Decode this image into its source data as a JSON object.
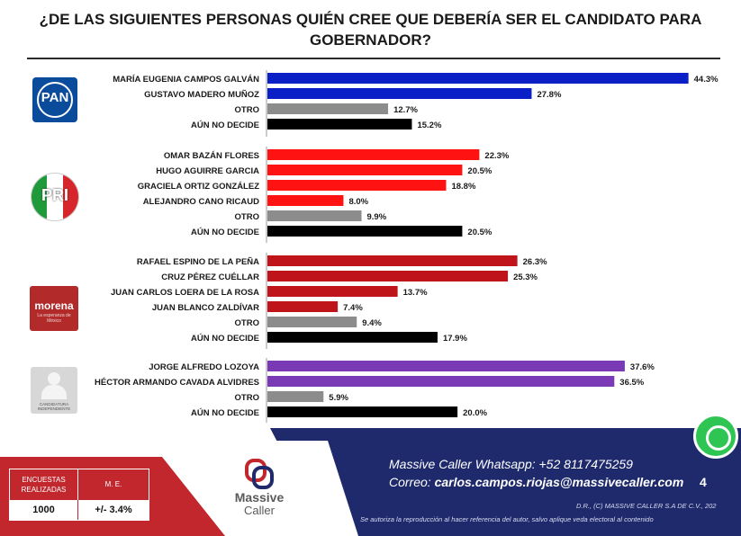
{
  "title": "¿DE LAS SIGUIENTES PERSONAS QUIÉN CREE QUE DEBERÍA SER EL CANDIDATO PARA GOBERNADOR?",
  "parties": [
    {
      "key": "pan",
      "logo_text": "PAN"
    },
    {
      "key": "pri",
      "logo_text": "PRI"
    },
    {
      "key": "morena",
      "logo_text": "morena",
      "logo_sub": "La esperanza de México"
    },
    {
      "key": "independiente",
      "logo_text": "CANDIDATURA INDEPENDIENTE"
    }
  ],
  "chart_data": {
    "type": "bar",
    "orientation": "horizontal",
    "title": "¿DE LAS SIGUIENTES PERSONAS QUIÉN CREE QUE DEBERÍA SER EL CANDIDATO PARA GOBERNADOR?",
    "value_suffix": "%",
    "xlim": [
      0,
      50
    ],
    "grid": false,
    "groups": [
      {
        "party": "PAN",
        "rows": [
          {
            "label": "MARÍA EUGENIA CAMPOS GALVÁN",
            "value": 44.3,
            "color": "#0b1fc7"
          },
          {
            "label": "GUSTAVO MADERO MUÑOZ",
            "value": 27.8,
            "color": "#0b1fc7"
          },
          {
            "label": "OTRO",
            "value": 12.7,
            "color": "#8c8c8c"
          },
          {
            "label": "AÚN NO DECIDE",
            "value": 15.2,
            "color": "#000000"
          }
        ]
      },
      {
        "party": "PRI",
        "rows": [
          {
            "label": "OMAR BAZÁN FLORES",
            "value": 22.3,
            "color": "#ff1212"
          },
          {
            "label": "HUGO AGUIRRE GARCIA",
            "value": 20.5,
            "color": "#ff1212"
          },
          {
            "label": "GRACIELA ORTIZ GONZÁLEZ",
            "value": 18.8,
            "color": "#ff1212"
          },
          {
            "label": "ALEJANDRO CANO RICAUD",
            "value": 8.0,
            "color": "#ff1212"
          },
          {
            "label": "OTRO",
            "value": 9.9,
            "color": "#8c8c8c"
          },
          {
            "label": "AÚN NO DECIDE",
            "value": 20.5,
            "color": "#000000"
          }
        ]
      },
      {
        "party": "MORENA",
        "rows": [
          {
            "label": "RAFAEL ESPINO DE LA PEÑA",
            "value": 26.3,
            "color": "#c0141b"
          },
          {
            "label": "CRUZ PÉREZ CUÉLLAR",
            "value": 25.3,
            "color": "#c0141b"
          },
          {
            "label": "JUAN CARLOS LOERA DE LA ROSA",
            "value": 13.7,
            "color": "#c0141b"
          },
          {
            "label": "JUAN BLANCO ZALDÍVAR",
            "value": 7.4,
            "color": "#c0141b"
          },
          {
            "label": "OTRO",
            "value": 9.4,
            "color": "#8c8c8c"
          },
          {
            "label": "AÚN NO DECIDE",
            "value": 17.9,
            "color": "#000000"
          }
        ]
      },
      {
        "party": "INDEPENDIENTE",
        "rows": [
          {
            "label": "JORGE ALFREDO LOZOYA",
            "value": 37.6,
            "color": "#7a3ab5"
          },
          {
            "label": "HÉCTOR ARMANDO CAVADA ALVIDRES",
            "value": 36.5,
            "color": "#7a3ab5"
          },
          {
            "label": "OTRO",
            "value": 5.9,
            "color": "#8c8c8c"
          },
          {
            "label": "AÚN NO DECIDE",
            "value": 20.0,
            "color": "#000000"
          }
        ]
      }
    ]
  },
  "footer": {
    "encuestas_label": "ENCUESTAS REALIZADAS",
    "me_label": "M. E.",
    "encuestas_value": "1000",
    "me_value": "+/- 3.4%",
    "brand_name": "Massive",
    "brand_name2": "Caller",
    "whatsapp_line": "Massive Caller Whatsapp:  +52 8117475259",
    "correo_label": "Correo: ",
    "correo_value": "carlos.campos.riojas@massivecaller.com",
    "page_number": "4",
    "rights": "D.R., (C) MASSIVE CALLER S.A DE C.V., 202",
    "disclaimer": "Se autoriza la reproducción al hacer referencia del autor, salvo aplique veda electoral al contenido"
  }
}
